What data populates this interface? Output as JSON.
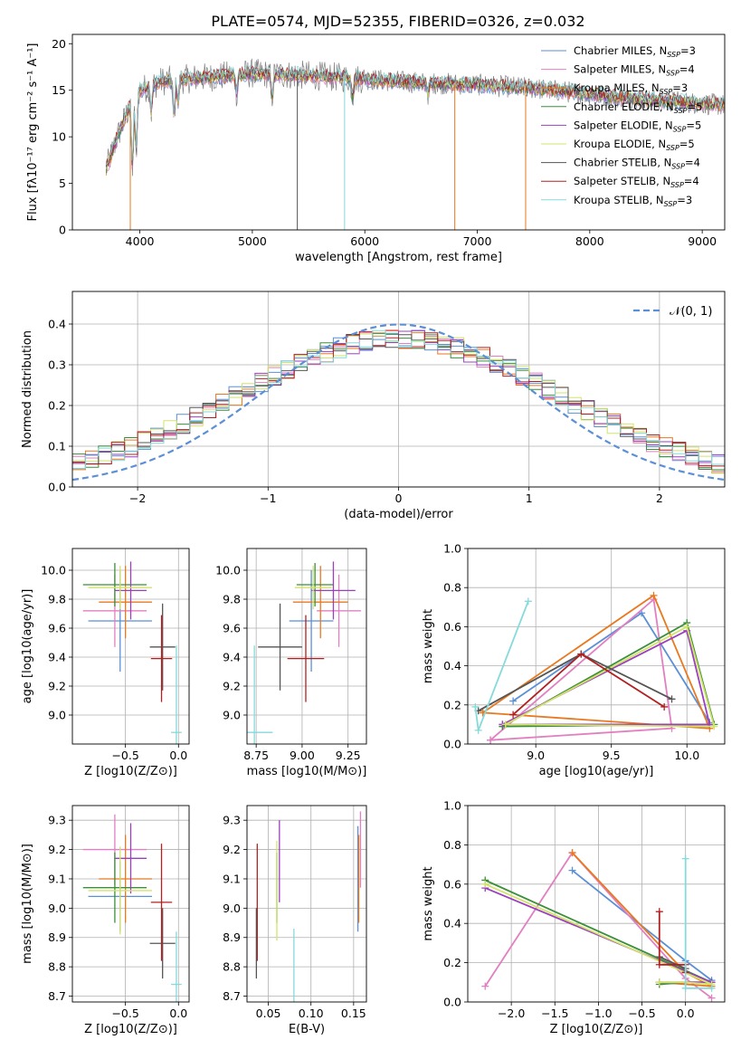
{
  "title": "PLATE=0574, MJD=52355, FIBERID=0326, z=0.032",
  "colors": {
    "Chabrier MILES": "#5b8fd6",
    "Salpeter MILES": "#e27fc0",
    "Kroupa MILES": "#e8791e",
    "Chabrier ELODIE": "#3a8f3a",
    "Salpeter ELODIE": "#9b3fbf",
    "Kroupa ELODIE": "#d3e36a",
    "Chabrier STELIB": "#555555",
    "Salpeter STELIB": "#b22020",
    "Kroupa STELIB": "#86dada"
  },
  "chart_data": [
    {
      "id": "spectrum",
      "type": "line",
      "xlabel": "wavelength [Angstrom, rest frame]",
      "ylabel": "Flux [fλ10⁻¹⁷ erg cm⁻² s⁻¹ A⁻¹]",
      "xlim": [
        3400,
        9200
      ],
      "ylim": [
        0,
        21
      ],
      "xticks": [
        4000,
        5000,
        6000,
        7000,
        8000,
        9000
      ],
      "yticks": [
        0,
        5,
        10,
        15,
        20
      ],
      "legend_position": "top-right",
      "series": [
        {
          "name": "Chabrier MILES, NSSP=3",
          "model": "Chabrier MILES"
        },
        {
          "name": "Salpeter MILES, NSSP=4",
          "model": "Salpeter MILES"
        },
        {
          "name": "Kroupa MILES, NSSP=3",
          "model": "Kroupa MILES"
        },
        {
          "name": "Chabrier ELODIE, NSSP=5",
          "model": "Chabrier ELODIE"
        },
        {
          "name": "Salpeter ELODIE, NSSP=5",
          "model": "Salpeter ELODIE"
        },
        {
          "name": "Kroupa ELODIE, NSSP=5",
          "model": "Kroupa ELODIE"
        },
        {
          "name": "Chabrier STELIB, NSSP=4",
          "model": "Chabrier STELIB"
        },
        {
          "name": "Salpeter STELIB, NSSP=4",
          "model": "Salpeter STELIB"
        },
        {
          "name": "Kroupa STELIB, NSSP=3",
          "model": "Kroupa STELIB"
        }
      ],
      "data_color": "#808080",
      "continuum": {
        "x": [
          3700,
          3800,
          3900,
          4000,
          4200,
          4500,
          5000,
          5500,
          6000,
          6500,
          7000,
          7500,
          8000,
          8500,
          9200
        ],
        "y": [
          6.5,
          10,
          13,
          15,
          16,
          16.3,
          16.8,
          16.6,
          16.2,
          15.8,
          15.6,
          15.2,
          14.6,
          14.0,
          13.4
        ]
      },
      "absorption": [
        {
          "x": 3934,
          "depth": 7
        },
        {
          "x": 3968,
          "depth": 6
        },
        {
          "x": 4101,
          "depth": 3
        },
        {
          "x": 4304,
          "depth": 4
        },
        {
          "x": 4340,
          "depth": 2.5
        },
        {
          "x": 4861,
          "depth": 2
        },
        {
          "x": 5175,
          "depth": 2.5
        },
        {
          "x": 5890,
          "depth": 2
        },
        {
          "x": 6563,
          "depth": 1.2
        }
      ],
      "spikes": [
        {
          "x": 5400,
          "to": 0,
          "model": "Chabrier STELIB"
        },
        {
          "x": 5820,
          "to": 0,
          "model": "Kroupa STELIB"
        },
        {
          "x": 6800,
          "to": 0,
          "model": "Kroupa MILES"
        },
        {
          "x": 7430,
          "to": 0,
          "model": "Kroupa MILES"
        },
        {
          "x": 3915,
          "to": 0,
          "model": "Kroupa MILES"
        }
      ]
    },
    {
      "id": "residuals",
      "type": "histogram",
      "xlabel": "(data-model)/error",
      "ylabel": "Normed distribution",
      "xlim": [
        -2.5,
        2.5
      ],
      "ylim": [
        0,
        0.48
      ],
      "xticks": [
        -2,
        -1,
        0,
        1,
        2
      ],
      "yticks": [
        0.0,
        0.1,
        0.2,
        0.3,
        0.4
      ],
      "grid": true,
      "legend_position": "top-right",
      "bins": 50,
      "gaussian_label": "𝒩(0, 1)",
      "gaussian_color": "#5b8fd6"
    },
    {
      "id": "age-vs-Z",
      "type": "errorbar",
      "xlabel": "Z [log10(Z/Z⊙)]",
      "ylabel": "age  [log10(age/yr)]",
      "xlim": [
        -1.0,
        0.1
      ],
      "ylim": [
        8.8,
        10.15
      ],
      "xticks": [
        -0.5,
        0.0
      ],
      "yticks": [
        9.0,
        9.2,
        9.4,
        9.6,
        9.8,
        10.0
      ],
      "grid": true,
      "points": [
        {
          "model": "Chabrier MILES",
          "x": -0.55,
          "xerr": 0.3,
          "y": 9.65,
          "yerr": 0.35
        },
        {
          "model": "Salpeter MILES",
          "x": -0.6,
          "xerr": 0.3,
          "y": 9.72,
          "yerr": 0.25
        },
        {
          "model": "Kroupa MILES",
          "x": -0.5,
          "xerr": 0.25,
          "y": 9.78,
          "yerr": 0.25
        },
        {
          "model": "Chabrier ELODIE",
          "x": -0.6,
          "xerr": 0.3,
          "y": 9.9,
          "yerr": 0.15
        },
        {
          "model": "Salpeter ELODIE",
          "x": -0.45,
          "xerr": 0.15,
          "y": 9.86,
          "yerr": 0.2
        },
        {
          "model": "Kroupa ELODIE",
          "x": -0.55,
          "xerr": 0.3,
          "y": 9.88,
          "yerr": 0.15
        },
        {
          "model": "Chabrier STELIB",
          "x": -0.15,
          "xerr": 0.12,
          "y": 9.47,
          "yerr": 0.3
        },
        {
          "model": "Salpeter STELIB",
          "x": -0.16,
          "xerr": 0.1,
          "y": 9.39,
          "yerr": 0.3
        },
        {
          "model": "Kroupa STELIB",
          "x": -0.02,
          "xerr": 0.05,
          "y": 8.88,
          "yerr": 0.6
        }
      ]
    },
    {
      "id": "age-vs-mass",
      "type": "errorbar",
      "xlabel": "mass [log10(M/M⊙)]",
      "ylabel": "",
      "xlim": [
        8.7,
        9.35
      ],
      "ylim": [
        8.8,
        10.15
      ],
      "xticks": [
        8.75,
        9.0,
        9.25
      ],
      "yticks": [
        9.0,
        9.2,
        9.4,
        9.6,
        9.8,
        10.0
      ],
      "grid": true,
      "points": [
        {
          "model": "Chabrier MILES",
          "x": 9.05,
          "xerr": 0.12,
          "y": 9.65,
          "yerr": 0.35
        },
        {
          "model": "Salpeter MILES",
          "x": 9.2,
          "xerr": 0.12,
          "y": 9.72,
          "yerr": 0.25
        },
        {
          "model": "Kroupa MILES",
          "x": 9.1,
          "xerr": 0.15,
          "y": 9.78,
          "yerr": 0.25
        },
        {
          "model": "Chabrier ELODIE",
          "x": 9.07,
          "xerr": 0.1,
          "y": 9.9,
          "yerr": 0.15
        },
        {
          "model": "Salpeter ELODIE",
          "x": 9.17,
          "xerr": 0.12,
          "y": 9.86,
          "yerr": 0.2
        },
        {
          "model": "Kroupa ELODIE",
          "x": 9.06,
          "xerr": 0.1,
          "y": 9.88,
          "yerr": 0.15
        },
        {
          "model": "Chabrier STELIB",
          "x": 8.88,
          "xerr": 0.12,
          "y": 9.47,
          "yerr": 0.3
        },
        {
          "model": "Salpeter STELIB",
          "x": 9.02,
          "xerr": 0.1,
          "y": 9.39,
          "yerr": 0.3
        },
        {
          "model": "Kroupa STELIB",
          "x": 8.74,
          "xerr": 0.1,
          "y": 8.88,
          "yerr": 0.6
        }
      ]
    },
    {
      "id": "mass-weight-vs-age",
      "type": "line",
      "xlabel": "age  [log10(age/yr)]",
      "ylabel": "mass weight",
      "xlim": [
        8.55,
        10.25
      ],
      "ylim": [
        0.0,
        1.0
      ],
      "xticks": [
        9.0,
        9.5,
        10.0
      ],
      "yticks": [
        0.0,
        0.2,
        0.4,
        0.6,
        0.8,
        1.0
      ],
      "grid": true,
      "series": [
        {
          "model": "Chabrier MILES",
          "x": [
            8.85,
            9.7,
            10.15
          ],
          "y": [
            0.22,
            0.67,
            0.11
          ]
        },
        {
          "model": "Salpeter MILES",
          "x": [
            8.7,
            9.78,
            9.9,
            8.7
          ],
          "y": [
            0.02,
            0.74,
            0.08,
            0.02
          ]
        },
        {
          "model": "Kroupa MILES",
          "x": [
            8.65,
            9.78,
            10.15,
            8.65
          ],
          "y": [
            0.16,
            0.76,
            0.08,
            0.16
          ]
        },
        {
          "model": "Chabrier ELODIE",
          "x": [
            8.78,
            10.0,
            10.18,
            8.78
          ],
          "y": [
            0.09,
            0.62,
            0.1,
            0.09
          ]
        },
        {
          "model": "Salpeter ELODIE",
          "x": [
            8.78,
            10.0,
            10.15,
            8.78
          ],
          "y": [
            0.1,
            0.58,
            0.1,
            0.1
          ]
        },
        {
          "model": "Kroupa ELODIE",
          "x": [
            8.8,
            10.0,
            10.18,
            8.8
          ],
          "y": [
            0.1,
            0.6,
            0.09,
            0.1
          ]
        },
        {
          "model": "Chabrier STELIB",
          "x": [
            8.62,
            9.3,
            9.9
          ],
          "y": [
            0.17,
            0.46,
            0.23
          ]
        },
        {
          "model": "Salpeter STELIB",
          "x": [
            8.85,
            9.3,
            9.85
          ],
          "y": [
            0.15,
            0.46,
            0.19
          ]
        },
        {
          "model": "Kroupa STELIB",
          "x": [
            8.6,
            8.62,
            8.95
          ],
          "y": [
            0.19,
            0.07,
            0.73
          ]
        }
      ]
    },
    {
      "id": "mass-vs-Z",
      "type": "errorbar",
      "xlabel": "Z [log10(Z/Z⊙)]",
      "ylabel": "mass [log10(M/M⊙)]",
      "xlim": [
        -1.0,
        0.1
      ],
      "ylim": [
        8.68,
        9.35
      ],
      "xticks": [
        -0.5,
        0.0
      ],
      "yticks": [
        8.7,
        8.8,
        8.9,
        9.0,
        9.1,
        9.2,
        9.3
      ],
      "grid": true,
      "points": [
        {
          "model": "Chabrier MILES",
          "x": -0.55,
          "xerr": 0.3,
          "y": 9.04,
          "yerr": 0.12
        },
        {
          "model": "Salpeter MILES",
          "x": -0.6,
          "xerr": 0.3,
          "y": 9.2,
          "yerr": 0.12
        },
        {
          "model": "Kroupa MILES",
          "x": -0.5,
          "xerr": 0.25,
          "y": 9.1,
          "yerr": 0.15
        },
        {
          "model": "Chabrier ELODIE",
          "x": -0.6,
          "xerr": 0.3,
          "y": 9.07,
          "yerr": 0.12
        },
        {
          "model": "Salpeter ELODIE",
          "x": -0.45,
          "xerr": 0.15,
          "y": 9.17,
          "yerr": 0.12
        },
        {
          "model": "Kroupa ELODIE",
          "x": -0.55,
          "xerr": 0.3,
          "y": 9.06,
          "yerr": 0.15
        },
        {
          "model": "Chabrier STELIB",
          "x": -0.15,
          "xerr": 0.12,
          "y": 8.88,
          "yerr": 0.12
        },
        {
          "model": "Salpeter STELIB",
          "x": -0.16,
          "xerr": 0.1,
          "y": 9.02,
          "yerr": 0.2
        },
        {
          "model": "Kroupa STELIB",
          "x": -0.02,
          "xerr": 0.05,
          "y": 8.74,
          "yerr": 0.18
        }
      ]
    },
    {
      "id": "mass-vs-EBV",
      "type": "errorbar",
      "xlabel": "E(B-V)",
      "ylabel": "",
      "xlim": [
        0.025,
        0.165
      ],
      "ylim": [
        8.68,
        9.35
      ],
      "xticks": [
        0.05,
        0.1,
        0.15
      ],
      "yticks": [
        8.7,
        8.8,
        8.9,
        9.0,
        9.1,
        9.2,
        9.3
      ],
      "grid": true,
      "points": [
        {
          "model": "Chabrier MILES",
          "x": 0.155,
          "xerr": 0,
          "y": 9.1,
          "yerr": 0.18
        },
        {
          "model": "Salpeter MILES",
          "x": 0.158,
          "xerr": 0,
          "y": 9.2,
          "yerr": 0.13
        },
        {
          "model": "Kroupa MILES",
          "x": 0.156,
          "xerr": 0,
          "y": 9.1,
          "yerr": 0.15
        },
        {
          "model": "Chabrier ELODIE",
          "x": 0.06,
          "xerr": 0,
          "y": 9.07,
          "yerr": 0.12
        },
        {
          "model": "Salpeter ELODIE",
          "x": 0.063,
          "xerr": 0,
          "y": 9.16,
          "yerr": 0.14
        },
        {
          "model": "Kroupa ELODIE",
          "x": 0.06,
          "xerr": 0,
          "y": 9.06,
          "yerr": 0.17
        },
        {
          "model": "Chabrier STELIB",
          "x": 0.036,
          "xerr": 0,
          "y": 8.88,
          "yerr": 0.12
        },
        {
          "model": "Salpeter STELIB",
          "x": 0.037,
          "xerr": 0,
          "y": 9.02,
          "yerr": 0.2
        },
        {
          "model": "Kroupa STELIB",
          "x": 0.08,
          "xerr": 0,
          "y": 8.78,
          "yerr": 0.15
        }
      ]
    },
    {
      "id": "mass-weight-vs-Z",
      "type": "line",
      "xlabel": "Z [log10(Z/Z⊙)]",
      "ylabel": "mass weight",
      "xlim": [
        -2.5,
        0.45
      ],
      "ylim": [
        0.0,
        1.0
      ],
      "xticks": [
        -2.0,
        -1.5,
        -1.0,
        -0.5,
        0.0
      ],
      "yticks": [
        0.0,
        0.2,
        0.4,
        0.6,
        0.8,
        1.0
      ],
      "grid": true,
      "series": [
        {
          "model": "Chabrier MILES",
          "x": [
            -1.3,
            0.0,
            0.3
          ],
          "y": [
            0.67,
            0.21,
            0.11
          ]
        },
        {
          "model": "Salpeter MILES",
          "x": [
            -2.3,
            -1.3,
            0.0,
            0.3
          ],
          "y": [
            0.08,
            0.76,
            0.12,
            0.02
          ]
        },
        {
          "model": "Kroupa MILES",
          "x": [
            -1.3,
            0.0,
            0.3,
            -0.3
          ],
          "y": [
            0.76,
            0.15,
            0.08,
            0.1
          ]
        },
        {
          "model": "Chabrier ELODIE",
          "x": [
            -2.3,
            0.3,
            0.0,
            -0.3
          ],
          "y": [
            0.62,
            0.1,
            0.1,
            0.09
          ]
        },
        {
          "model": "Salpeter ELODIE",
          "x": [
            -2.3,
            0.3,
            0.0,
            -0.3
          ],
          "y": [
            0.58,
            0.1,
            0.1,
            0.1
          ]
        },
        {
          "model": "Kroupa ELODIE",
          "x": [
            -2.3,
            0.3,
            0.0,
            -0.3
          ],
          "y": [
            0.6,
            0.09,
            0.1,
            0.1
          ]
        },
        {
          "model": "Chabrier STELIB",
          "x": [
            -0.3,
            0.0,
            0.0
          ],
          "y": [
            0.23,
            0.17,
            0.15
          ]
        },
        {
          "model": "Salpeter STELIB",
          "x": [
            -0.3,
            -0.3,
            0.0,
            0.0
          ],
          "y": [
            0.46,
            0.19,
            0.19,
            0.15
          ]
        },
        {
          "model": "Kroupa STELIB",
          "x": [
            0.0,
            0.0,
            0.3
          ],
          "y": [
            0.73,
            0.07,
            0.07
          ]
        }
      ]
    }
  ]
}
